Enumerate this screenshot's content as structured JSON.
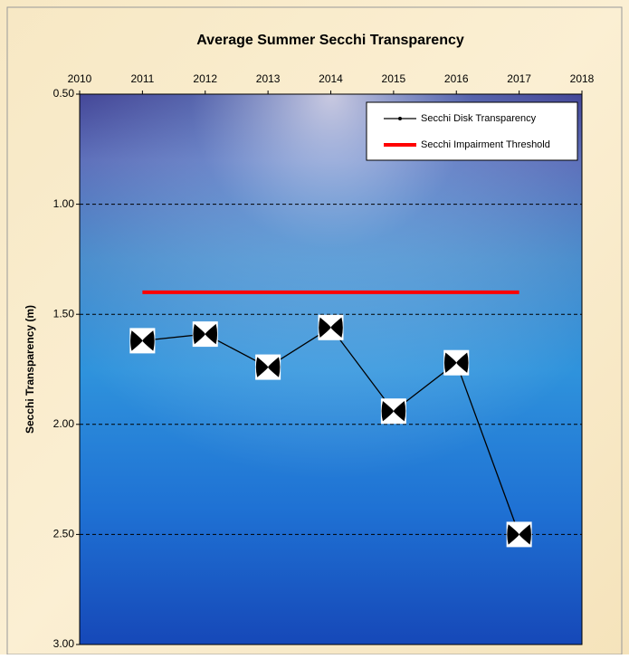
{
  "chart_data": {
    "type": "line",
    "title": "Average Summer Secchi Transparency",
    "y_label": "Secchi Transparency (m)",
    "y_inverted": true,
    "x_axis_position": "top",
    "legend_position": "top-right",
    "grid": true,
    "series": [
      {
        "name": "Secchi Disk Transparency",
        "color": "#000000",
        "marker": "secchi-disk",
        "x": [
          2011,
          2012,
          2013,
          2014,
          2015,
          2016,
          2017
        ],
        "values": [
          1.62,
          1.59,
          1.74,
          1.56,
          1.94,
          1.72,
          2.5
        ]
      },
      {
        "name": "Secchi Impairment Threshold",
        "color": "#ff0000",
        "x": [
          2011,
          2017
        ],
        "values": [
          1.4,
          1.4
        ]
      }
    ],
    "xlim": [
      2010,
      2018
    ],
    "xticks": [
      2010,
      2011,
      2012,
      2013,
      2014,
      2015,
      2016,
      2017,
      2018
    ],
    "ylim": [
      0.5,
      3
    ],
    "yticks": [
      {
        "value": 0.5,
        "label": "0.50"
      },
      {
        "value": 1,
        "label": "1.00"
      },
      {
        "value": 1.5,
        "label": "1.50"
      },
      {
        "value": 2,
        "label": "2.00"
      },
      {
        "value": 2.5,
        "label": "2.50"
      },
      {
        "value": 3,
        "label": "3.00"
      }
    ]
  }
}
